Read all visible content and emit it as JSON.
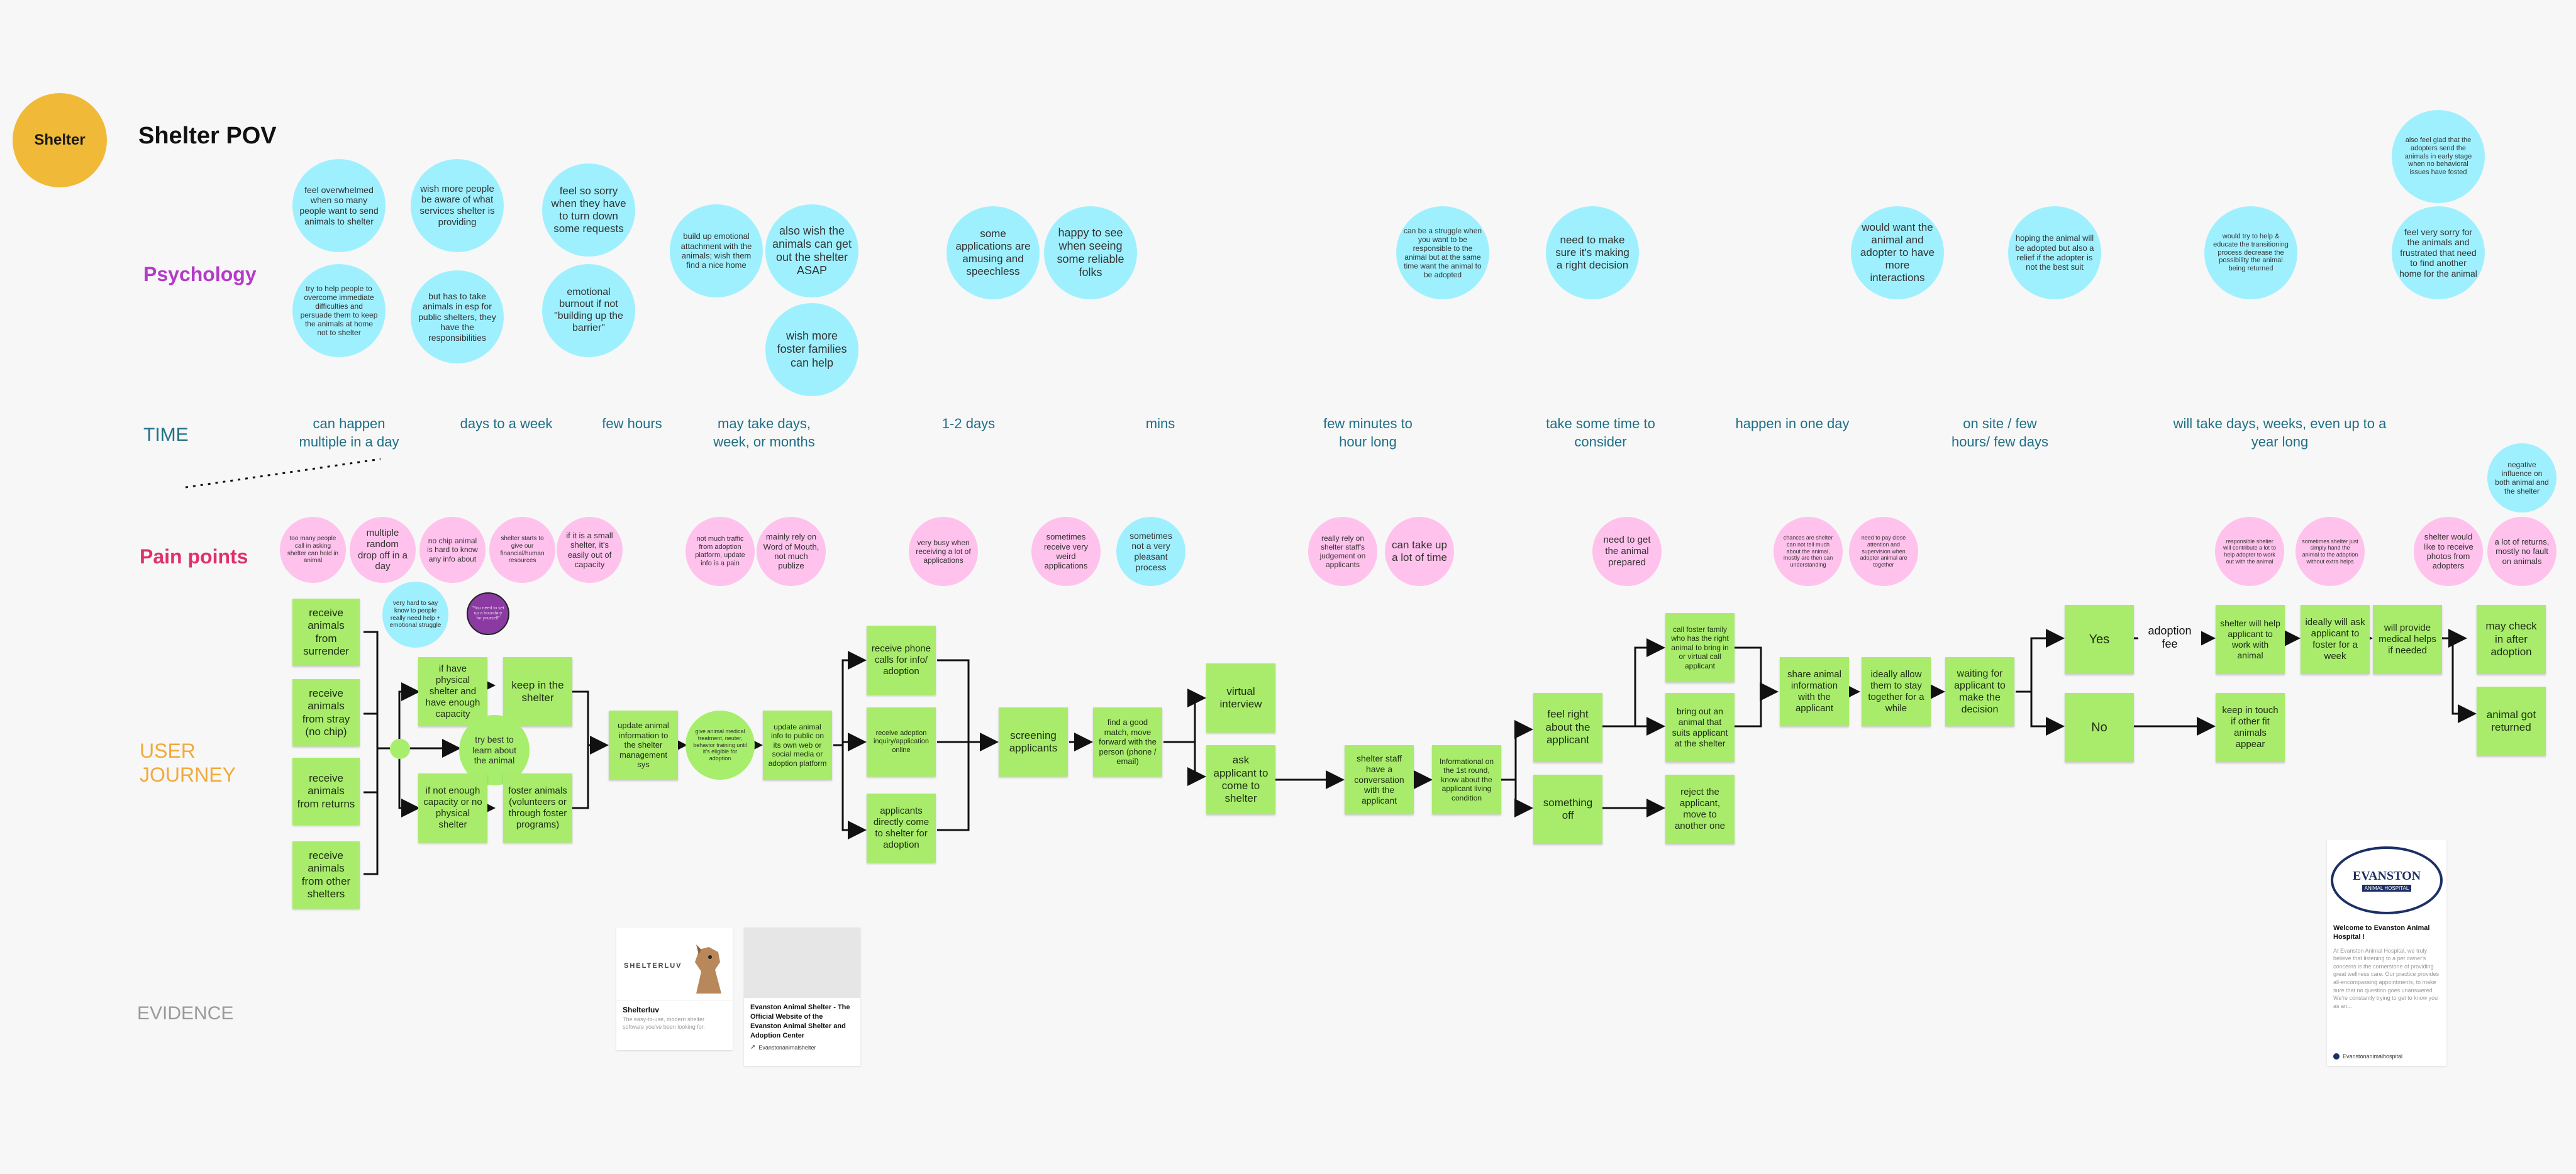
{
  "header": {
    "badge": "Shelter",
    "title": "Shelter POV"
  },
  "rows": {
    "psychology": "Psychology",
    "time": "TIME",
    "pain": "Pain points",
    "journey": "USER\nJOURNEY",
    "evidence": "EVIDENCE"
  },
  "colors": {
    "badge": "#f0b938",
    "psychology": "#b53ac8",
    "time": "#1e6f86",
    "pain": "#e0306a",
    "journey": "#f2a93b",
    "evidence": "#9a9a9a",
    "blue": "#9ff0ff",
    "pink": "#ffc2ec",
    "sticky": "#a9ec6b"
  },
  "psychology": [
    "feel overwhelmed when so many people want to send animals to shelter",
    "wish more people be aware of what services shelter is providing",
    "feel so sorry when they have to turn down some requests",
    "try to help people to overcome immediate difficulties and persuade them to keep the animals at home not to shelter",
    "but has to take animals in esp for public shelters, they have the responsibilities",
    "emotional burnout if not \"building up the barrier\"",
    "build up emotional attachment with the animals; wish them find a nice home",
    "also wish the animals can get out the shelter ASAP",
    "wish more foster families can help",
    "some applications are amusing and speechless",
    "happy to see when seeing some reliable folks",
    "can be a struggle when you want to be responsible to the animal but at the same time want the animal to be adopted",
    "need to make sure it's making a right decision",
    "would want the animal and adopter to have more interactions",
    "hoping the animal will be adopted but also a relief if the adopter is not the best suit",
    "would try to help & educate the transitioning process decrease the possibility the animal being returned",
    "also feel glad that the adopters send the animals in early stage when no behavioral issues have fosted",
    "feel very sorry for the animals and frustrated that need to find another home for the animal"
  ],
  "time": [
    "can happen\nmultiple in a day",
    "days to a week",
    "few hours",
    "may take days,\nweek, or months",
    "1-2 days",
    "mins",
    "few minutes to\nhour long",
    "take some time to\nconsider",
    "happen in one day",
    "on site / few\nhours/ few days",
    "will take days, weeks, even up to a\nyear long"
  ],
  "pain": [
    "too many people call in asking shelter can hold in animal",
    "multiple random drop off in a day",
    "no chip animal is hard to know any info about",
    "shelter starts to give our financial/human resources",
    "if it is a small shelter, it's easily out of capacity",
    "very hard to say know to people really need help + emotional struggle",
    "\"You need to set up a boundary for yourself\"",
    "not much traffic from adoption platform, update info is a pain",
    "mainly rely on Word of Mouth, not much publize",
    "very busy when receiving a lot of applications",
    "sometimes receive very weird applications",
    "sometimes not a very pleasant process",
    "really rely on shelter staff's judgement on applicants",
    "can take up a lot of time",
    "need to get the animal prepared",
    "chances are shelter can not tell much about the animal, mostly are then can understanding",
    "need to pay close attention and supervision when adopter animal are together",
    "responsible shelter will contribute a lot to help adopter to work out with the animal",
    "sometimes shelter just simply hand the animal to the adoption without extra helps",
    "shelter would like to receive photos from adopters",
    "a lot of returns, mostly no fault on animals",
    "negative influence on both animal and the shelter"
  ],
  "journey": {
    "receive_surrender": "receive animals from surrender",
    "receive_stray": "receive animals from stray (no chip)",
    "receive_returns": "receive animals from returns",
    "receive_other": "receive animals from other shelters",
    "if_have": "if have physical shelter and have enough capacity",
    "keep_shelter": "keep in the shelter",
    "try_best": "try best to learn about the animal",
    "if_not": "if not enough capacity or no physical shelter",
    "foster": "foster animals (volunteers or through foster programs)",
    "update_mgmt": "update animal information to the shelter management sys",
    "give_treatment": "give animal medical treatment, neuter, behavior training until it's eligible for adoption",
    "update_public": "update animal info to public on its own web or social media or adoption platform",
    "phone_calls": "receive phone calls for info/ adoption",
    "inquiry": "receive adoption inquiry/application online",
    "directly_come": "applicants directly come to shelter for adoption",
    "screening": "screening applicants",
    "good_match": "find a good match, move forward with the person (phone / email)",
    "virtual": "virtual interview",
    "ask_come": "ask applicant to come to shelter",
    "conversation": "shelter staff have a conversation with the applicant",
    "informational": "Informational on the 1st round, know about the applicant living condition",
    "feel_right": "feel right about the applicant",
    "something_off": "something off",
    "call_foster": "call foster family who has the right animal to bring in or virtual call applicant",
    "bring_out": "bring out an animal that suits applicant at the shelter",
    "reject": "reject the applicant, move to another one",
    "share_info": "share animal information with the applicant",
    "ideally_allow": "ideally allow them to stay together for a while",
    "waiting": "waiting for applicant to make the decision",
    "yes": "Yes",
    "no": "No",
    "adoption_fee": "adoption\nfee",
    "will_help": "shelter will help applicant to work with animal",
    "ideally_ask": "ideally will ask applicant to foster for a week",
    "medical": "will provide medical helps if needed",
    "keep_touch": "keep in touch if other fit animals appear",
    "may_check": "may check in after adoption",
    "returned": "animal got returned"
  },
  "evidence": {
    "shelterluv_logo": "SHELTERLUV",
    "shelterluv_title": "Shelterluv",
    "shelterluv_desc": "The easy-to-use, modern shelter software you've been looking for.",
    "eas_title": "Evanston Animal Shelter - The Official Website of the Evanston Animal Shelter and Adoption Center",
    "eas_domain": "Evanstonanimalshelter",
    "hospital_logo": "EVANSTON",
    "hospital_logo_sub": "ANIMAL HOSPITAL",
    "hospital_title": "Welcome to Evanston Animal Hospital !",
    "hospital_desc": "At Evanston Animal Hospital, we truly believe that listening to a pet owner's concerns is the cornerstone of providing great wellness care. Our practice provides all-encompassing appointments, to make sure that no question goes unanswered. We're constantly trying to get to know you as an...",
    "hospital_domain": "Evanstonanimalhospital"
  }
}
